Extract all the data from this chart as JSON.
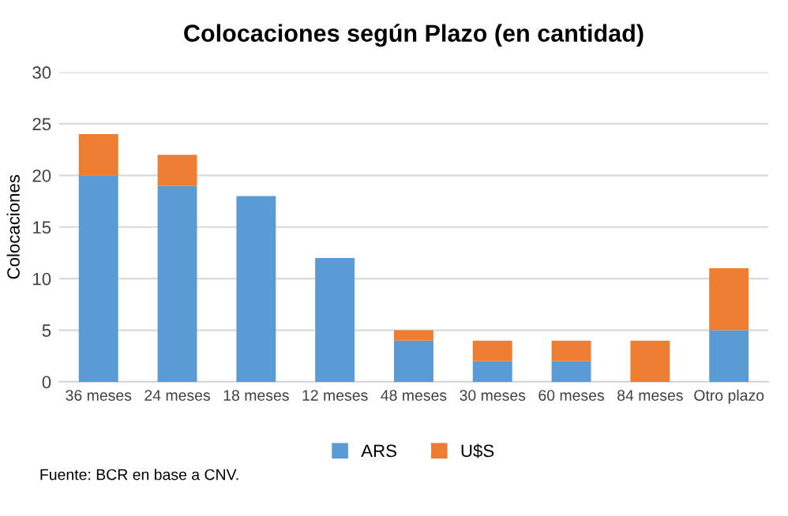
{
  "chart_data": {
    "type": "bar",
    "stacked": true,
    "title": "Colocaciones según Plazo (en cantidad)",
    "ylabel": "Colocaciones",
    "categories": [
      "36 meses",
      "24 meses",
      "18 meses",
      "12 meses",
      "48 meses",
      "30 meses",
      "60 meses",
      "84 meses",
      "Otro plazo"
    ],
    "series": [
      {
        "name": "ARS",
        "color": "#5b9bd5",
        "values": [
          20,
          19,
          18,
          12,
          4,
          2,
          2,
          0,
          5
        ]
      },
      {
        "name": "U$S",
        "color": "#ed7d31",
        "values": [
          4,
          3,
          0,
          0,
          1,
          2,
          2,
          4,
          6
        ]
      }
    ],
    "ylim": [
      0,
      30
    ],
    "yticks": [
      0,
      5,
      10,
      15,
      20,
      25,
      30
    ],
    "grid": "y",
    "legend": "bottom",
    "annotations": [
      "Fuente: BCR en base a CNV."
    ]
  }
}
